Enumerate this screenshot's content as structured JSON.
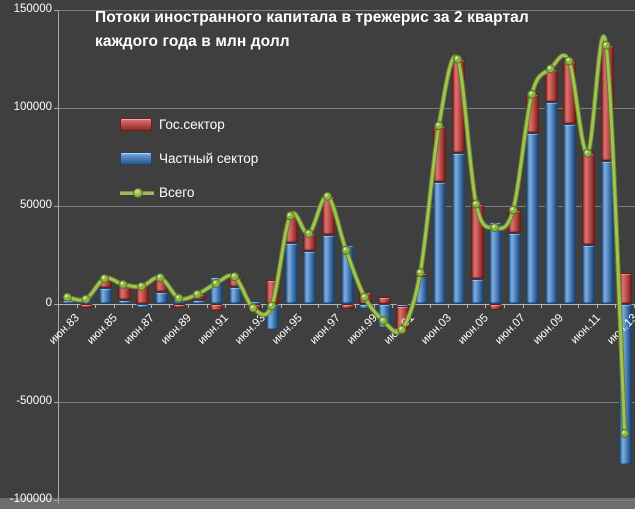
{
  "title": {
    "line1": "Потоки иностранного капитала в трежерис за 2 квартал",
    "line2": "каждого года в млн долл"
  },
  "legend": {
    "gov_label": "Гос.сектор",
    "private_label": "Частный сектор",
    "total_label": "Всего"
  },
  "colors": {
    "background": "#3f3f3f",
    "gov_red": "#c0504d",
    "private_blue": "#4f81bd",
    "total_green": "#9bbb59",
    "text": "#ffffff",
    "gridline": "#7d7d7d"
  },
  "y_axis": {
    "tick_labels": [
      "150000",
      "100000",
      "50000",
      "0",
      "-50000",
      "-100000"
    ],
    "tick_values": [
      150000,
      100000,
      50000,
      0,
      -50000,
      -100000
    ],
    "min": -100000,
    "max": 150000
  },
  "x_axis": {
    "tick_labels": [
      "июн.83",
      "июн.85",
      "июн.87",
      "июн.89",
      "июн.91",
      "июн.93",
      "июн.95",
      "июн.97",
      "июн.99",
      "июн.01",
      "июн.03",
      "июн.05",
      "июн.07",
      "июн.09",
      "июн.11",
      "июн.13"
    ]
  },
  "chart_data": {
    "type": "bar",
    "stacked": true,
    "overlay_line_series": "Всего",
    "grid": true,
    "legend_position": "upper-left-inside",
    "title": "Потоки иностранного капитала в трежерис за 2 квартал каждого года в млн долл",
    "ylim": [
      -100000,
      150000
    ],
    "categories": [
      "июн.83",
      "июн.84",
      "июн.85",
      "июн.86",
      "июн.87",
      "июн.88",
      "июн.89",
      "июн.90",
      "июн.91",
      "июн.92",
      "июн.93",
      "июн.94",
      "июн.95",
      "июн.96",
      "июн.97",
      "июн.98",
      "июн.99",
      "июн.00",
      "июн.01",
      "июн.02",
      "июн.03",
      "июн.04",
      "июн.05",
      "июн.06",
      "июн.07",
      "июн.08",
      "июн.09",
      "июн.10",
      "июн.11",
      "июн.12",
      "июн.13"
    ],
    "shown_tick_labels": [
      "июн.83",
      "июн.85",
      "июн.87",
      "июн.89",
      "июн.91",
      "июн.93",
      "июн.95",
      "июн.97",
      "июн.99",
      "июн.01",
      "июн.03",
      "июн.05",
      "июн.07",
      "июн.09",
      "июн.11",
      "июн.13"
    ],
    "series": [
      {
        "name": "Частный сектор",
        "role": "bar-stack-base",
        "color": "#4f81bd",
        "values": [
          2000,
          4000,
          8000,
          2000,
          -1000,
          6000,
          4000,
          2000,
          14000,
          8500,
          1500,
          -13500,
          31000,
          27000,
          35000,
          30000,
          -2500,
          -12000,
          -1000,
          15000,
          62000,
          77000,
          13000,
          42000,
          36000,
          87000,
          103000,
          92000,
          30000,
          73000,
          -82000
        ]
      },
      {
        "name": "Гос.сектор",
        "role": "bar-stack-top",
        "color": "#c0504d",
        "values": [
          1500,
          -1500,
          5000,
          8000,
          10000,
          7500,
          -1000,
          3000,
          -3500,
          5500,
          -3500,
          12500,
          14000,
          9000,
          20000,
          -2500,
          6000,
          3500,
          -12000,
          1000,
          29000,
          48000,
          38000,
          -3000,
          12000,
          20000,
          17000,
          32000,
          47000,
          59000,
          16000
        ]
      },
      {
        "name": "Всего",
        "role": "line",
        "color": "#9bbb59",
        "values": [
          3500,
          2500,
          13000,
          10000,
          9000,
          13500,
          3000,
          5000,
          10500,
          14000,
          -2000,
          -1000,
          45000,
          36000,
          55000,
          27500,
          3500,
          -8500,
          -13000,
          16000,
          91000,
          125000,
          51000,
          39000,
          48000,
          107000,
          120000,
          124000,
          77000,
          132000,
          -66000
        ]
      }
    ]
  }
}
